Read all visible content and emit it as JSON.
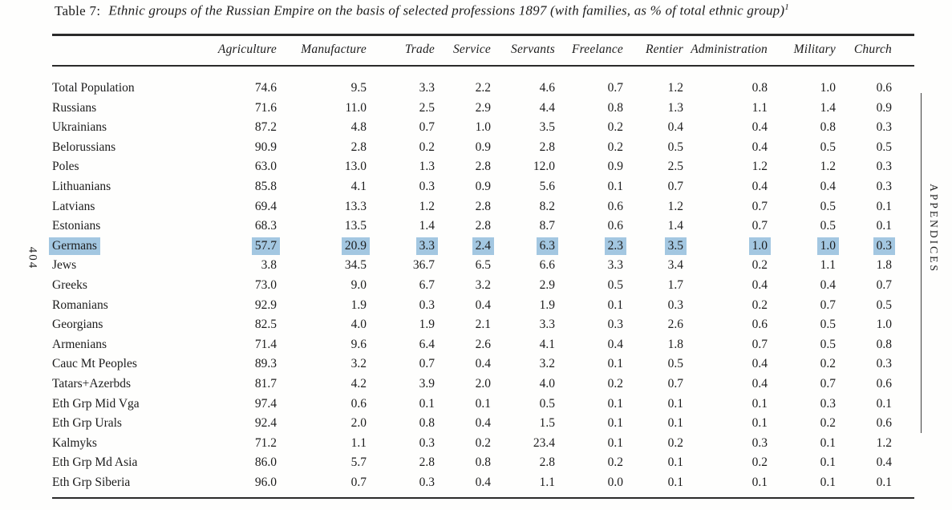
{
  "page": {
    "left_margin_label": "404",
    "right_margin_label": "APPENDICES"
  },
  "title": {
    "prefix": "Table 7:",
    "text": "Ethnic groups of the Russian Empire on the basis of selected professions 1897 (with families, as % of total ethnic group)",
    "footnote_marker": "1"
  },
  "table": {
    "highlight_color": "#a3c7e1",
    "columns": [
      "Agriculture",
      "Manufacture",
      "Trade",
      "Service",
      "Servants",
      "Freelance",
      "Rentier",
      "Administration",
      "Military",
      "Church"
    ],
    "rows": [
      {
        "name": "Total Population",
        "highlighted": false,
        "values": [
          "74.6",
          "9.5",
          "3.3",
          "2.2",
          "4.6",
          "0.7",
          "1.2",
          "0.8",
          "1.0",
          "0.6"
        ]
      },
      {
        "name": "Russians",
        "highlighted": false,
        "values": [
          "71.6",
          "11.0",
          "2.5",
          "2.9",
          "4.4",
          "0.8",
          "1.3",
          "1.1",
          "1.4",
          "0.9"
        ]
      },
      {
        "name": "Ukrainians",
        "highlighted": false,
        "values": [
          "87.2",
          "4.8",
          "0.7",
          "1.0",
          "3.5",
          "0.2",
          "0.4",
          "0.4",
          "0.8",
          "0.3"
        ]
      },
      {
        "name": "Belorussians",
        "highlighted": false,
        "values": [
          "90.9",
          "2.8",
          "0.2",
          "0.9",
          "2.8",
          "0.2",
          "0.5",
          "0.4",
          "0.5",
          "0.5"
        ]
      },
      {
        "name": "Poles",
        "highlighted": false,
        "values": [
          "63.0",
          "13.0",
          "1.3",
          "2.8",
          "12.0",
          "0.9",
          "2.5",
          "1.2",
          "1.2",
          "0.3"
        ]
      },
      {
        "name": "Lithuanians",
        "highlighted": false,
        "values": [
          "85.8",
          "4.1",
          "0.3",
          "0.9",
          "5.6",
          "0.1",
          "0.7",
          "0.4",
          "0.4",
          "0.3"
        ]
      },
      {
        "name": "Latvians",
        "highlighted": false,
        "values": [
          "69.4",
          "13.3",
          "1.2",
          "2.8",
          "8.2",
          "0.6",
          "1.2",
          "0.7",
          "0.5",
          "0.1"
        ]
      },
      {
        "name": "Estonians",
        "highlighted": false,
        "values": [
          "68.3",
          "13.5",
          "1.4",
          "2.8",
          "8.7",
          "0.6",
          "1.4",
          "0.7",
          "0.5",
          "0.1"
        ]
      },
      {
        "name": "Germans",
        "highlighted": true,
        "values": [
          "57.7",
          "20.9",
          "3.3",
          "2.4",
          "6.3",
          "2.3",
          "3.5",
          "1.0",
          "1.0",
          "0.3"
        ]
      },
      {
        "name": "Jews",
        "highlighted": false,
        "values": [
          "3.8",
          "34.5",
          "36.7",
          "6.5",
          "6.6",
          "3.3",
          "3.4",
          "0.2",
          "1.1",
          "1.8"
        ]
      },
      {
        "name": "Greeks",
        "highlighted": false,
        "values": [
          "73.0",
          "9.0",
          "6.7",
          "3.2",
          "2.9",
          "0.5",
          "1.7",
          "0.4",
          "0.4",
          "0.7"
        ]
      },
      {
        "name": "Romanians",
        "highlighted": false,
        "values": [
          "92.9",
          "1.9",
          "0.3",
          "0.4",
          "1.9",
          "0.1",
          "0.3",
          "0.2",
          "0.7",
          "0.5"
        ]
      },
      {
        "name": "Georgians",
        "highlighted": false,
        "values": [
          "82.5",
          "4.0",
          "1.9",
          "2.1",
          "3.3",
          "0.3",
          "2.6",
          "0.6",
          "0.5",
          "1.0"
        ]
      },
      {
        "name": "Armenians",
        "highlighted": false,
        "values": [
          "71.4",
          "9.6",
          "6.4",
          "2.6",
          "4.1",
          "0.4",
          "1.8",
          "0.7",
          "0.5",
          "0.8"
        ]
      },
      {
        "name": "Cauc Mt Peoples",
        "highlighted": false,
        "values": [
          "89.3",
          "3.2",
          "0.7",
          "0.4",
          "3.2",
          "0.1",
          "0.5",
          "0.4",
          "0.2",
          "0.3"
        ]
      },
      {
        "name": "Tatars+Azerbds",
        "highlighted": false,
        "values": [
          "81.7",
          "4.2",
          "3.9",
          "2.0",
          "4.0",
          "0.2",
          "0.7",
          "0.4",
          "0.7",
          "0.6"
        ]
      },
      {
        "name": "Eth Grp Mid Vga",
        "highlighted": false,
        "values": [
          "97.4",
          "0.6",
          "0.1",
          "0.1",
          "0.5",
          "0.1",
          "0.1",
          "0.1",
          "0.3",
          "0.1"
        ]
      },
      {
        "name": "Eth Grp Urals",
        "highlighted": false,
        "values": [
          "92.4",
          "2.0",
          "0.8",
          "0.4",
          "1.5",
          "0.1",
          "0.1",
          "0.1",
          "0.2",
          "0.6"
        ]
      },
      {
        "name": "Kalmyks",
        "highlighted": false,
        "values": [
          "71.2",
          "1.1",
          "0.3",
          "0.2",
          "23.4",
          "0.1",
          "0.2",
          "0.3",
          "0.1",
          "1.2"
        ]
      },
      {
        "name": "Eth Grp Md Asia",
        "highlighted": false,
        "values": [
          "86.0",
          "5.7",
          "2.8",
          "0.8",
          "2.8",
          "0.2",
          "0.1",
          "0.2",
          "0.1",
          "0.4"
        ]
      },
      {
        "name": "Eth Grp Siberia",
        "highlighted": false,
        "values": [
          "96.0",
          "0.7",
          "0.3",
          "0.4",
          "1.1",
          "0.0",
          "0.1",
          "0.1",
          "0.1",
          "0.1"
        ]
      }
    ]
  }
}
